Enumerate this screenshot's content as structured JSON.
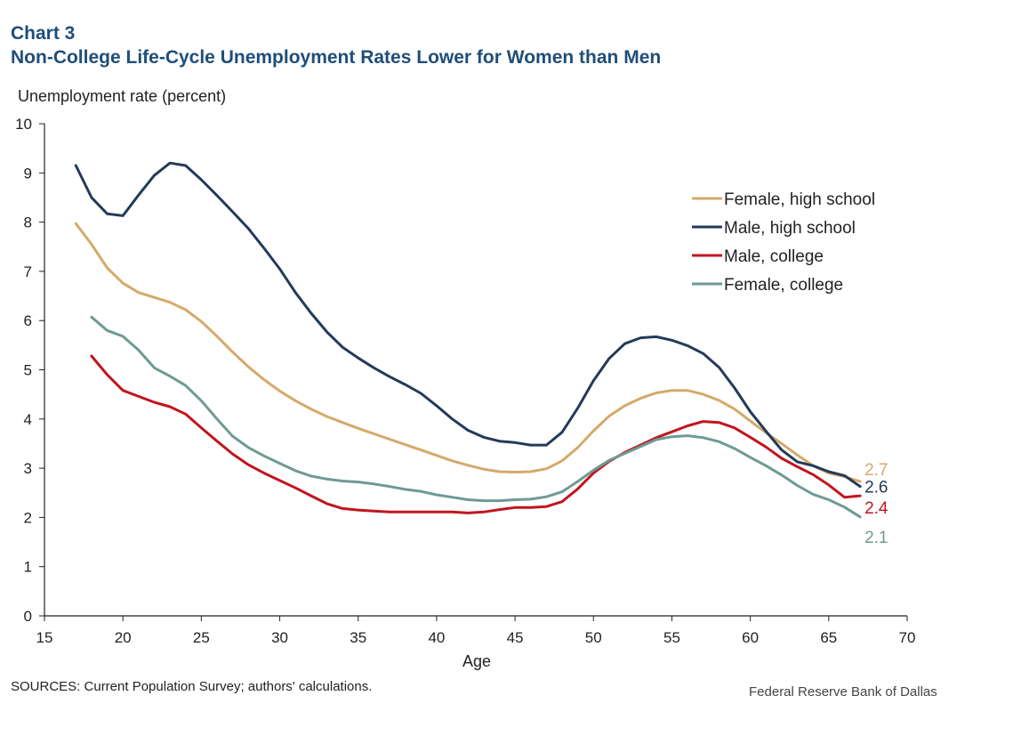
{
  "header": {
    "label": "Chart 3",
    "title": "Non-College Life-Cycle Unemployment  Rates Lower for Women than Men"
  },
  "footer": {
    "source": "SOURCES:  Current Population Survey; authors' calculations.",
    "credit": "Federal Reserve  Bank of Dallas"
  },
  "chart_data": {
    "type": "line",
    "title": "Non-College Life-Cycle Unemployment  Rates Lower for Women than Men",
    "xlabel": "Age",
    "ylabel": "Unemployment  rate (percent)",
    "xlim": [
      15,
      70
    ],
    "ylim": [
      0,
      10
    ],
    "xticks": [
      15,
      20,
      25,
      30,
      35,
      40,
      45,
      50,
      55,
      60,
      65,
      70
    ],
    "yticks": [
      0,
      1,
      2,
      3,
      4,
      5,
      6,
      7,
      8,
      9,
      10
    ],
    "grid": false,
    "legend_position": "top-right",
    "series": [
      {
        "name": "Female, high school",
        "color": "#d4aa6a",
        "end_label": "2.7",
        "x": [
          17,
          18,
          19,
          20,
          21,
          22,
          23,
          24,
          25,
          26,
          27,
          28,
          29,
          30,
          31,
          32,
          33,
          34,
          35,
          36,
          37,
          38,
          39,
          40,
          41,
          42,
          43,
          44,
          45,
          46,
          47,
          48,
          49,
          50,
          51,
          52,
          53,
          54,
          55,
          56,
          57,
          58,
          59,
          60,
          61,
          62,
          63,
          64,
          65,
          66,
          67
        ],
        "y": [
          7.97,
          7.55,
          7.07,
          6.76,
          6.57,
          6.47,
          6.37,
          6.22,
          5.98,
          5.68,
          5.36,
          5.06,
          4.8,
          4.57,
          4.37,
          4.2,
          4.05,
          3.93,
          3.81,
          3.7,
          3.59,
          3.48,
          3.37,
          3.26,
          3.15,
          3.06,
          2.98,
          2.93,
          2.92,
          2.93,
          2.99,
          3.15,
          3.42,
          3.76,
          4.06,
          4.27,
          4.42,
          4.53,
          4.58,
          4.58,
          4.5,
          4.38,
          4.2,
          3.96,
          3.72,
          3.5,
          3.27,
          3.05,
          2.9,
          2.83,
          2.73
        ]
      },
      {
        "name": "Male, high school",
        "color": "#243a5a",
        "end_label": "2.6",
        "x": [
          17,
          18,
          19,
          20,
          21,
          22,
          23,
          24,
          25,
          26,
          27,
          28,
          29,
          30,
          31,
          32,
          33,
          34,
          35,
          36,
          37,
          38,
          39,
          40,
          41,
          42,
          43,
          44,
          45,
          46,
          47,
          48,
          49,
          50,
          51,
          52,
          53,
          54,
          55,
          56,
          57,
          58,
          59,
          60,
          61,
          62,
          63,
          64,
          65,
          66,
          67
        ],
        "y": [
          9.15,
          8.5,
          8.17,
          8.13,
          8.55,
          8.95,
          9.2,
          9.15,
          8.86,
          8.54,
          8.21,
          7.87,
          7.47,
          7.05,
          6.57,
          6.15,
          5.77,
          5.46,
          5.24,
          5.04,
          4.86,
          4.7,
          4.52,
          4.27,
          4.0,
          3.77,
          3.63,
          3.55,
          3.52,
          3.47,
          3.47,
          3.73,
          4.22,
          4.78,
          5.23,
          5.53,
          5.65,
          5.67,
          5.6,
          5.49,
          5.33,
          5.05,
          4.63,
          4.15,
          3.75,
          3.37,
          3.13,
          3.05,
          2.93,
          2.85,
          2.63
        ]
      },
      {
        "name": "Male, college",
        "color": "#c0161f",
        "end_label": "2.4",
        "x": [
          18,
          19,
          20,
          21,
          22,
          23,
          24,
          25,
          26,
          27,
          28,
          29,
          30,
          31,
          32,
          33,
          34,
          35,
          36,
          37,
          38,
          39,
          40,
          41,
          42,
          43,
          44,
          45,
          46,
          47,
          48,
          49,
          50,
          51,
          52,
          53,
          54,
          55,
          56,
          57,
          58,
          59,
          60,
          61,
          62,
          63,
          64,
          65,
          66,
          67
        ],
        "y": [
          5.28,
          4.9,
          4.58,
          4.46,
          4.34,
          4.25,
          4.1,
          3.82,
          3.55,
          3.29,
          3.07,
          2.9,
          2.75,
          2.6,
          2.44,
          2.28,
          2.18,
          2.15,
          2.13,
          2.11,
          2.11,
          2.11,
          2.11,
          2.11,
          2.09,
          2.11,
          2.16,
          2.2,
          2.2,
          2.22,
          2.32,
          2.58,
          2.9,
          3.14,
          3.32,
          3.47,
          3.62,
          3.74,
          3.86,
          3.95,
          3.93,
          3.82,
          3.63,
          3.43,
          3.2,
          3.03,
          2.87,
          2.66,
          2.41,
          2.44
        ]
      },
      {
        "name": "Female, college",
        "color": "#6f9a94",
        "end_label": "2.1",
        "x": [
          18,
          19,
          20,
          21,
          22,
          23,
          24,
          25,
          26,
          27,
          28,
          29,
          30,
          31,
          32,
          33,
          34,
          35,
          36,
          37,
          38,
          39,
          40,
          41,
          42,
          43,
          44,
          45,
          46,
          47,
          48,
          49,
          50,
          51,
          52,
          53,
          54,
          55,
          56,
          57,
          58,
          59,
          60,
          61,
          62,
          63,
          64,
          65,
          66,
          67
        ],
        "y": [
          6.07,
          5.8,
          5.68,
          5.4,
          5.04,
          4.87,
          4.68,
          4.37,
          4.0,
          3.65,
          3.42,
          3.25,
          3.1,
          2.95,
          2.84,
          2.78,
          2.74,
          2.72,
          2.68,
          2.63,
          2.57,
          2.53,
          2.46,
          2.41,
          2.36,
          2.34,
          2.34,
          2.36,
          2.37,
          2.42,
          2.52,
          2.73,
          2.96,
          3.16,
          3.3,
          3.44,
          3.58,
          3.64,
          3.66,
          3.62,
          3.54,
          3.4,
          3.22,
          3.05,
          2.86,
          2.65,
          2.47,
          2.36,
          2.21,
          2.01
        ]
      }
    ]
  }
}
